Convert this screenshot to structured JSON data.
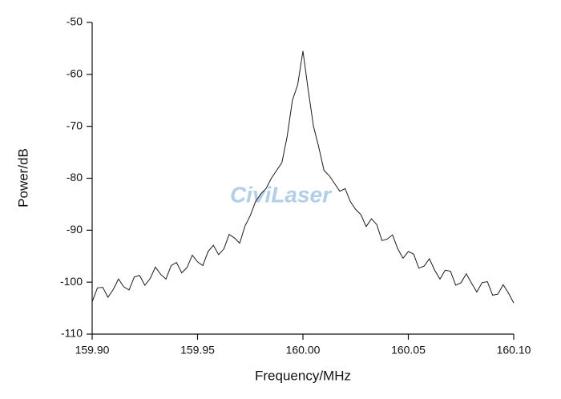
{
  "chart_data": {
    "type": "line",
    "xlabel": "Frequency/MHz",
    "ylabel": "Power/dB",
    "watermark": "CiviLaser",
    "color": "#1a1a1a",
    "xlim": [
      159.9,
      160.1
    ],
    "xticks": [
      {
        "value": 159.9,
        "label": "159.90"
      },
      {
        "value": 159.95,
        "label": "159.95"
      },
      {
        "value": 160,
        "label": "160.00"
      },
      {
        "value": 160.05,
        "label": "160.05"
      },
      {
        "value": 160.1,
        "label": "160.10"
      }
    ],
    "ylim": [
      -110,
      -50
    ],
    "yticks": [
      -110,
      -100,
      -90,
      -80,
      -70,
      -60,
      -50
    ],
    "x": [
      159.9,
      159.9025,
      159.905,
      159.9075,
      159.91,
      159.9125,
      159.915,
      159.9175,
      159.92,
      159.9225,
      159.925,
      159.9275,
      159.93,
      159.9325,
      159.935,
      159.9375,
      159.94,
      159.9425,
      159.945,
      159.9475,
      159.95,
      159.9525,
      159.955,
      159.9575,
      159.96,
      159.9625,
      159.965,
      159.9675,
      159.97,
      159.9725,
      159.975,
      159.9775,
      159.98,
      159.9825,
      159.985,
      159.9875,
      159.99,
      159.9925,
      159.995,
      159.9975,
      160,
      160.0025,
      160.005,
      160.0075,
      160.01,
      160.0125,
      160.015,
      160.0175,
      160.02,
      160.0225,
      160.025,
      160.0275,
      160.03,
      160.0325,
      160.035,
      160.0375,
      160.04,
      160.0425,
      160.045,
      160.0475,
      160.05,
      160.0525,
      160.055,
      160.0575,
      160.06,
      160.0625,
      160.065,
      160.0675,
      160.07,
      160.0725,
      160.075,
      160.0775,
      160.08,
      160.0825,
      160.085,
      160.0875,
      160.09,
      160.0925,
      160.095,
      160.0975,
      160.1
    ],
    "values": [
      -103.8,
      -101.1,
      -101.0,
      -102.9,
      -101.4,
      -99.4,
      -100.9,
      -101.5,
      -99.0,
      -98.7,
      -100.6,
      -99.3,
      -97.1,
      -98.5,
      -99.4,
      -96.8,
      -96.2,
      -98.2,
      -97.2,
      -94.8,
      -96.1,
      -96.8,
      -94.1,
      -92.9,
      -94.7,
      -93.6,
      -90.8,
      -91.5,
      -92.5,
      -89.2,
      -87.2,
      -84.5,
      -83.0,
      -82.0,
      -80.0,
      -78.5,
      -77.0,
      -72.0,
      -65.0,
      -62.0,
      -55.5,
      -63.0,
      -70.0,
      -74.0,
      -78.5,
      -79.5,
      -81.0,
      -82.5,
      -82.0,
      -84.5,
      -86.0,
      -87.0,
      -89.3,
      -87.8,
      -88.9,
      -92.0,
      -91.7,
      -90.9,
      -93.6,
      -95.4,
      -94.1,
      -94.6,
      -97.3,
      -96.9,
      -95.5,
      -97.7,
      -99.4,
      -97.7,
      -97.9,
      -100.6,
      -100.1,
      -98.4,
      -100.2,
      -101.9,
      -100.1,
      -99.9,
      -102.5,
      -102.3,
      -100.5,
      -102.1,
      -104.0
    ]
  }
}
